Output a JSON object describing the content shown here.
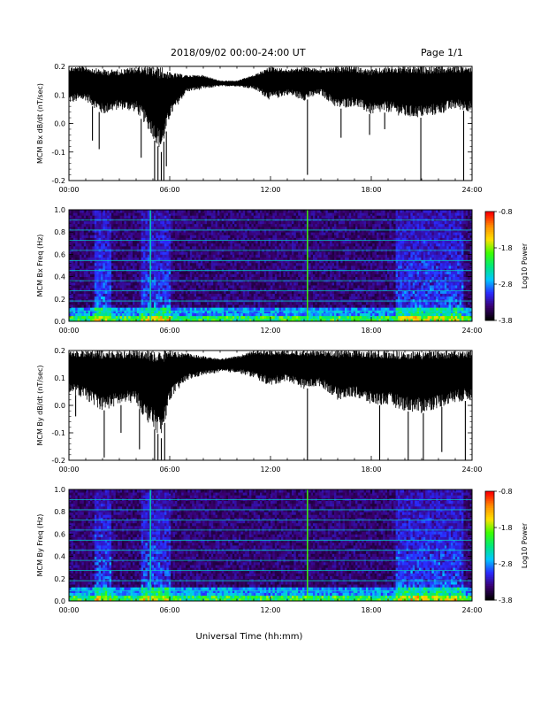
{
  "header": {
    "title": "2018/09/02  00:00-24:00 UT",
    "page": "Page 1/1"
  },
  "xaxis_label": "Universal Time (hh:mm)",
  "colors": {
    "trace": "#000000",
    "colorbar_stops": [
      "#000000",
      "#3a0070",
      "#2a2aff",
      "#00c8ff",
      "#00e87a",
      "#3cff00",
      "#ffe000",
      "#ff8c00",
      "#ff0000"
    ]
  },
  "chart_data": [
    {
      "type": "line",
      "ylabel": "MCM Bx dB/dt (nT/sec)",
      "xlim_hours": [
        0,
        24
      ],
      "xticks": [
        "00:00",
        "06:00",
        "12:00",
        "18:00",
        "24:00"
      ],
      "ylim": [
        -0.2,
        0.2
      ],
      "yticks": [
        "0.2",
        "0.1",
        "0.0",
        "-0.1",
        "-0.2"
      ],
      "envelope": {
        "hours": [
          0,
          1,
          2,
          3,
          4,
          4.5,
          5,
          5.5,
          6,
          7,
          8,
          9,
          10,
          11,
          12,
          13,
          14,
          15,
          16,
          17,
          18,
          19,
          20,
          21,
          22,
          23,
          24
        ],
        "upper": [
          0.2,
          0.2,
          0.19,
          0.19,
          0.2,
          0.2,
          0.2,
          0.2,
          0.18,
          0.17,
          0.17,
          0.15,
          0.15,
          0.17,
          0.2,
          0.19,
          0.2,
          0.19,
          0.2,
          0.2,
          0.19,
          0.2,
          0.2,
          0.2,
          0.2,
          0.2,
          0.2
        ],
        "lower": [
          0.07,
          0.08,
          0.03,
          0.05,
          0.04,
          0.0,
          -0.05,
          -0.1,
          0.02,
          0.11,
          0.12,
          0.13,
          0.13,
          0.12,
          0.08,
          0.1,
          0.08,
          0.1,
          0.05,
          0.06,
          0.03,
          0.04,
          0.02,
          0.02,
          0.03,
          0.05,
          0.04
        ]
      },
      "spikes": [
        {
          "hour": 1.4,
          "min": -0.06
        },
        {
          "hour": 1.8,
          "min": -0.09
        },
        {
          "hour": 4.3,
          "min": -0.12
        },
        {
          "hour": 5.1,
          "min": -0.21
        },
        {
          "hour": 5.3,
          "min": -0.21
        },
        {
          "hour": 5.5,
          "min": -0.21
        },
        {
          "hour": 5.65,
          "min": -0.21
        },
        {
          "hour": 5.8,
          "min": -0.15
        },
        {
          "hour": 14.2,
          "min": -0.18
        },
        {
          "hour": 16.2,
          "min": -0.05
        },
        {
          "hour": 17.9,
          "min": -0.04
        },
        {
          "hour": 18.8,
          "min": -0.02
        },
        {
          "hour": 20.95,
          "min": -0.21
        },
        {
          "hour": 23.5,
          "min": -0.21
        }
      ]
    },
    {
      "type": "heatmap",
      "ylabel": "MCM Bx Freq (Hz)",
      "xlim_hours": [
        0,
        24
      ],
      "xticks": [
        "00:00",
        "06:00",
        "12:00",
        "18:00",
        "24:00"
      ],
      "ylim": [
        0.0,
        1.0
      ],
      "yticks": [
        "1.0",
        "0.8",
        "0.6",
        "0.4",
        "0.2",
        "0.0"
      ],
      "colorbar_label": "Log10 Power",
      "colorbar_ticks": [
        "-0.8",
        "-1.8",
        "-2.8",
        "-3.8"
      ],
      "colorbar_range": [
        -3.8,
        -0.8
      ],
      "harmonic_lines_hz": [
        0.091,
        0.182,
        0.273,
        0.364,
        0.455,
        0.545,
        0.636,
        0.727,
        0.818,
        0.909
      ],
      "vertical_events_hours": [
        4.85,
        14.2
      ],
      "active_intervals_hours": [
        [
          1.5,
          2.5
        ],
        [
          4.3,
          6.0
        ],
        [
          19.5,
          23.5
        ]
      ]
    },
    {
      "type": "line",
      "ylabel": "MCM By dB/dt (nT/sec)",
      "xlim_hours": [
        0,
        24
      ],
      "xticks": [
        "00:00",
        "06:00",
        "12:00",
        "18:00",
        "24:00"
      ],
      "ylim": [
        -0.2,
        0.2
      ],
      "yticks": [
        "0.2",
        "0.1",
        "0.0",
        "-0.1",
        "-0.2"
      ],
      "envelope": {
        "hours": [
          0,
          1,
          2,
          3,
          4,
          4.5,
          5,
          5.5,
          6,
          7,
          8,
          9,
          10,
          11,
          12,
          13,
          14,
          15,
          16,
          17,
          18,
          19,
          20,
          21,
          22,
          23,
          24
        ],
        "upper": [
          0.2,
          0.2,
          0.2,
          0.2,
          0.2,
          0.2,
          0.2,
          0.2,
          0.2,
          0.19,
          0.18,
          0.17,
          0.18,
          0.2,
          0.2,
          0.2,
          0.2,
          0.2,
          0.2,
          0.2,
          0.2,
          0.2,
          0.2,
          0.2,
          0.2,
          0.2,
          0.2
        ],
        "lower": [
          0.05,
          0.02,
          -0.02,
          0.0,
          0.01,
          -0.05,
          -0.08,
          -0.12,
          0.02,
          0.09,
          0.11,
          0.12,
          0.12,
          0.1,
          0.07,
          0.09,
          0.06,
          0.07,
          0.02,
          0.03,
          0.0,
          0.0,
          -0.02,
          -0.03,
          -0.01,
          0.01,
          0.02
        ]
      },
      "spikes": [
        {
          "hour": 0.4,
          "min": -0.04
        },
        {
          "hour": 2.1,
          "min": -0.19
        },
        {
          "hour": 3.1,
          "min": -0.1
        },
        {
          "hour": 4.2,
          "min": -0.16
        },
        {
          "hour": 5.1,
          "min": -0.21
        },
        {
          "hour": 5.3,
          "min": -0.21
        },
        {
          "hour": 5.5,
          "min": -0.21
        },
        {
          "hour": 5.7,
          "min": -0.21
        },
        {
          "hour": 14.2,
          "min": -0.21
        },
        {
          "hour": 18.5,
          "min": -0.2
        },
        {
          "hour": 20.2,
          "min": -0.21
        },
        {
          "hour": 21.1,
          "min": -0.21
        },
        {
          "hour": 22.2,
          "min": -0.17
        },
        {
          "hour": 23.6,
          "min": -0.21
        }
      ]
    },
    {
      "type": "heatmap",
      "ylabel": "MCM By Freq (Hz)",
      "xlim_hours": [
        0,
        24
      ],
      "xticks": [
        "00:00",
        "06:00",
        "12:00",
        "18:00",
        "24:00"
      ],
      "ylim": [
        0.0,
        1.0
      ],
      "yticks": [
        "1.0",
        "0.8",
        "0.6",
        "0.4",
        "0.2",
        "0.0"
      ],
      "colorbar_label": "Log10 Power",
      "colorbar_ticks": [
        "-0.8",
        "-1.8",
        "-2.8",
        "-3.8"
      ],
      "colorbar_range": [
        -3.8,
        -0.8
      ],
      "harmonic_lines_hz": [
        0.091,
        0.182,
        0.273,
        0.364,
        0.455,
        0.545,
        0.636,
        0.727,
        0.818,
        0.909
      ],
      "vertical_events_hours": [
        4.85,
        14.2
      ],
      "active_intervals_hours": [
        [
          1.5,
          2.5
        ],
        [
          4.3,
          6.0
        ],
        [
          19.5,
          23.5
        ]
      ]
    }
  ]
}
